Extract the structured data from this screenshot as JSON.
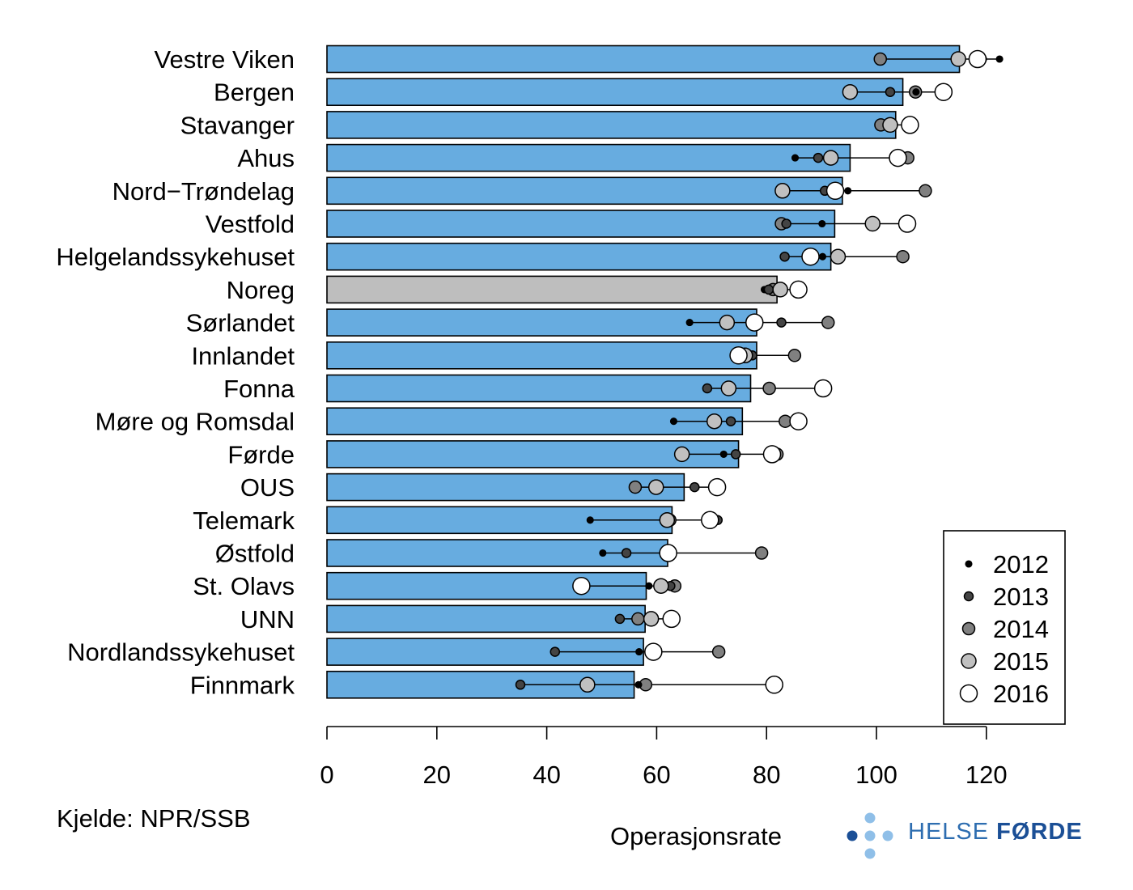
{
  "chart_data": {
    "type": "bar",
    "categories": [
      "Vestre Viken",
      "Bergen",
      "Stavanger",
      "Ahus",
      "Nord−Trøndelag",
      "Vestfold",
      "Helgelandssykehuset",
      "Noreg",
      "Sørlandet",
      "Innlandet",
      "Fonna",
      "Møre og Romsdal",
      "Førde",
      "OUS",
      "Telemark",
      "Østfold",
      "St. Olavs",
      "UNN",
      "Nordlandssykehuset",
      "Finnmark"
    ],
    "values": [
      115.1,
      104.8,
      103.5,
      95.2,
      93.8,
      92.4,
      91.7,
      81.9,
      78.2,
      78.2,
      77.1,
      75.6,
      74.9,
      65.0,
      62.8,
      62.0,
      58.1,
      57.9,
      57.6,
      55.9
    ],
    "highlight": "Noreg",
    "bar_color": "#67ace0",
    "highlight_color": "#bebebe",
    "years": [
      "2012",
      "2013",
      "2014",
      "2015",
      "2016"
    ],
    "year_colors": [
      "#000000",
      "#444444",
      "#808080",
      "#c0c0c0",
      "#ffffff"
    ],
    "series": [
      {
        "name": "2012",
        "values": [
          122.4,
          107.2,
          105.6,
          85.2,
          94.8,
          90.1,
          90.2,
          79.6,
          66.0,
          75.6,
          72.4,
          63.1,
          72.2,
          71.4,
          47.9,
          50.2,
          58.6,
          58.7,
          56.8,
          56.7
        ]
      },
      {
        "name": "2013",
        "values": [
          119.2,
          102.5,
          102.1,
          89.4,
          90.6,
          83.6,
          83.3,
          80.4,
          82.7,
          77.4,
          69.2,
          73.5,
          74.4,
          66.9,
          71.1,
          54.5,
          62.5,
          53.3,
          41.5,
          35.2
        ]
      },
      {
        "name": "2014",
        "values": [
          100.7,
          107.1,
          100.8,
          105.7,
          108.9,
          82.7,
          104.8,
          81.2,
          91.2,
          85.1,
          80.5,
          83.4,
          81.9,
          56.1,
          62.4,
          79.1,
          63.3,
          56.6,
          71.3,
          58.0
        ]
      },
      {
        "name": "2015",
        "values": [
          114.9,
          95.2,
          102.5,
          91.7,
          82.9,
          99.3,
          93.0,
          82.5,
          72.8,
          76.1,
          73.1,
          70.5,
          64.6,
          59.9,
          61.9,
          62.1,
          60.8,
          59.0,
          59.3,
          47.4
        ]
      },
      {
        "name": "2016",
        "values": [
          118.4,
          112.2,
          106.1,
          103.9,
          92.5,
          105.6,
          88.0,
          85.8,
          77.8,
          74.9,
          90.3,
          85.8,
          81.0,
          71.0,
          69.7,
          62.1,
          46.3,
          62.7,
          59.4,
          81.4
        ]
      }
    ],
    "title": "",
    "xlabel": "Operasjonsrate",
    "ylabel": "",
    "xlim": [
      0,
      120
    ],
    "xticks": [
      0,
      20,
      40,
      60,
      80,
      100,
      120
    ],
    "legend": {
      "position": "bottom-right",
      "entries": [
        "2012",
        "2013",
        "2014",
        "2015",
        "2016"
      ]
    }
  },
  "source_label": "Kjelde: NPR/SSB",
  "logo": {
    "word1": "HELSE ",
    "word2": "FØRDE"
  }
}
